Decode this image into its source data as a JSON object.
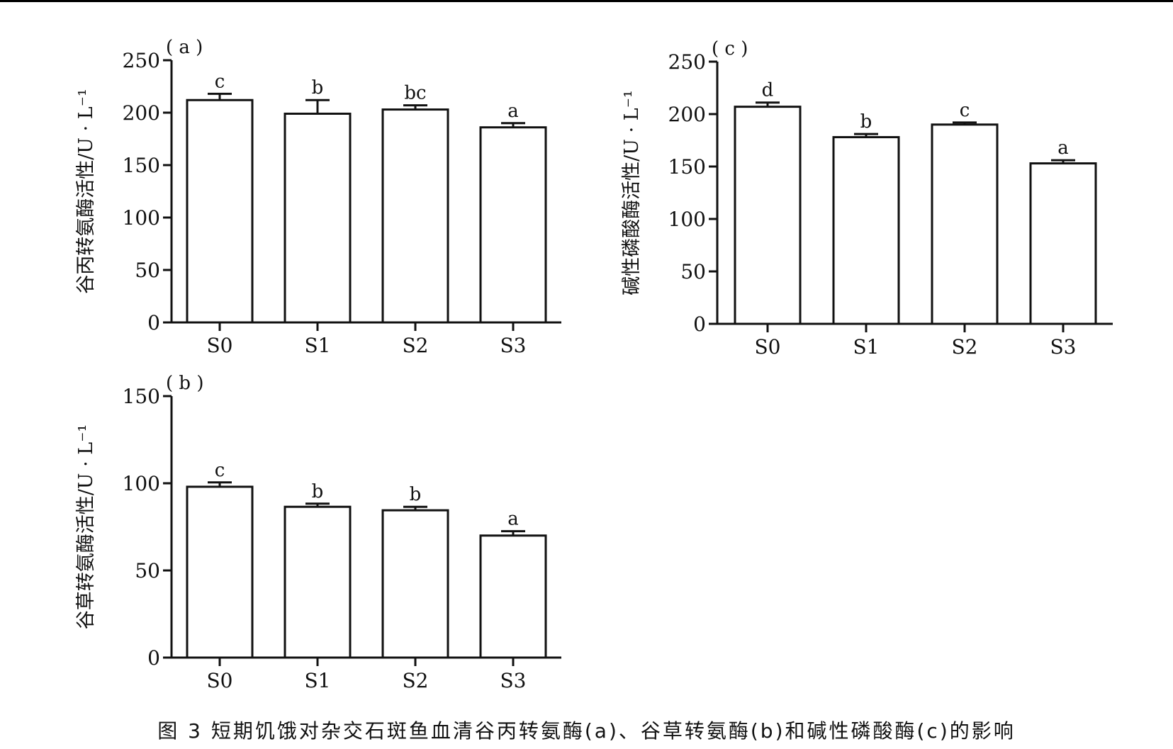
{
  "caption": "图 3  短期饥饿对杂交石斑鱼血清谷丙转氨酶(a)、谷草转氨酶(b)和碱性磷酸酶(c)的影响",
  "chart_data": [
    {
      "id": "a",
      "panel_label": "( a )",
      "type": "bar",
      "categories": [
        "S0",
        "S1",
        "S2",
        "S3"
      ],
      "values": [
        212,
        199,
        203,
        186
      ],
      "errors": [
        6,
        13,
        4,
        4
      ],
      "significance": [
        "c",
        "b",
        "bc",
        "a"
      ],
      "ylabel": "谷丙转氨酶活性/U · L⁻¹",
      "yticks": [
        0,
        50,
        100,
        150,
        200,
        250
      ],
      "ylim": [
        0,
        250
      ]
    },
    {
      "id": "b",
      "panel_label": "( b )",
      "type": "bar",
      "categories": [
        "S0",
        "S1",
        "S2",
        "S3"
      ],
      "values": [
        98,
        86.5,
        84.5,
        70
      ],
      "errors": [
        2.5,
        1.8,
        2,
        2.5
      ],
      "significance": [
        "c",
        "b",
        "b",
        "a"
      ],
      "ylabel": "谷草转氨酶活性/U · L⁻¹",
      "yticks": [
        0,
        50,
        100,
        150
      ],
      "ylim": [
        0,
        150
      ]
    },
    {
      "id": "c",
      "panel_label": "( c )",
      "type": "bar",
      "categories": [
        "S0",
        "S1",
        "S2",
        "S3"
      ],
      "values": [
        207,
        178,
        190,
        153
      ],
      "errors": [
        4,
        3,
        2,
        3
      ],
      "significance": [
        "d",
        "b",
        "c",
        "a"
      ],
      "ylabel": "碱性磷酸酶活性/U · L⁻¹",
      "yticks": [
        0,
        50,
        100,
        150,
        200,
        250
      ],
      "ylim": [
        0,
        250
      ]
    }
  ]
}
